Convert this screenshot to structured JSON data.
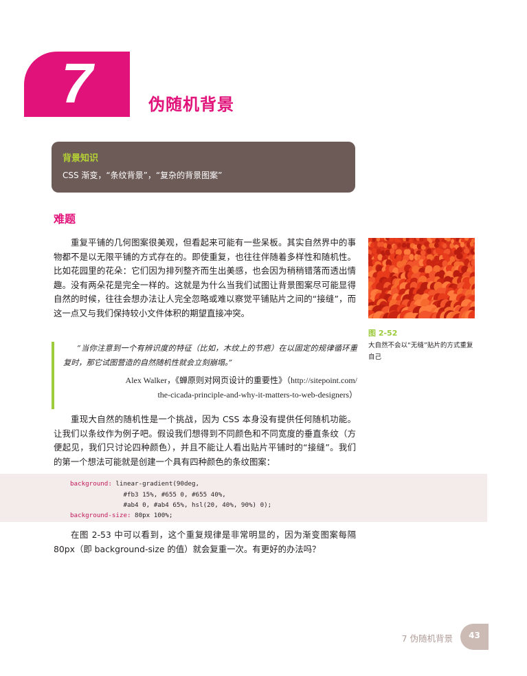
{
  "chapter": {
    "number": "7",
    "title": "伪随机背景"
  },
  "background_box": {
    "title": "背景知识",
    "text": "CSS 渐变，“条纹背景”，“复杂的背景图案”"
  },
  "section": {
    "title": "难题"
  },
  "paragraphs": [
    "重复平铺的几何图案很美观，但看起来可能有一些呆板。其实自然界中的事物都不是以无限平铺的方式存在的。即使重复，也往往伴随着多样性和随机性。比如花园里的花朵：它们因为排列整齐而生出美感，也会因为稍稍错落而透出情趣。没有两朵花是完全一样的。这就是为什么当我们试图让背景图案尽可能显得自然的时候，往往会想办法让人完全忽略或难以察觉平铺贴片之间的“接缝”，而这一点又与我们保持较小文件体积的期望直接冲突。",
    "重现大自然的随机性是一个挑战，因为 CSS 本身没有提供任何随机功能。让我们以条纹作为例子吧。假设我们想得到不同颜色和不同宽度的垂直条纹（方便起见，我们只讨论四种颜色），并且不能让人看出贴片平铺时的“接缝”。我们的第一个想法可能就是创建一个具有四种颜色的条纹图案：",
    "在图 2-53 中可以看到，这个重复规律是非常明显的，因为渐变图案每隔 80px（即 background-size 的值）就会复重一次。有更好的办法吗？"
  ],
  "quote": {
    "text": "“当你注意到一个有辨识度的特征（比如，木纹上的节疤）在以固定的规律循环重复时，那它试图营造的自然随机性就会立刻崩塌。”",
    "source_line1": "Alex Walker，《蝉原则对网页设计的重要性》（http://sitepoint.com/",
    "source_line2": "the-cicada-principle-and-why-it-matters-to-web-designers）"
  },
  "code": {
    "line1_prop": "background:",
    "line1_val": " linear-gradient(90deg,",
    "line2": "              #fb3 15%, #655 0, #655 40%,",
    "line3": "              #ab4 0, #ab4 65%, hsl(20, 40%, 90%) 0);",
    "line4_prop": "background-size:",
    "line4_val": " 80px 100%;"
  },
  "figure": {
    "label": "图 2-52",
    "caption": "大自然不会以“无缝”贴片的方式重复自己"
  },
  "footer": {
    "chapter_ref": "7  伪随机背景",
    "page": "43"
  },
  "colors": {
    "accent": "#e1127a",
    "green": "#9ccb3b",
    "box": "#6d5b57",
    "code_bg": "#f3ecea",
    "footer": "#ccbab5"
  }
}
